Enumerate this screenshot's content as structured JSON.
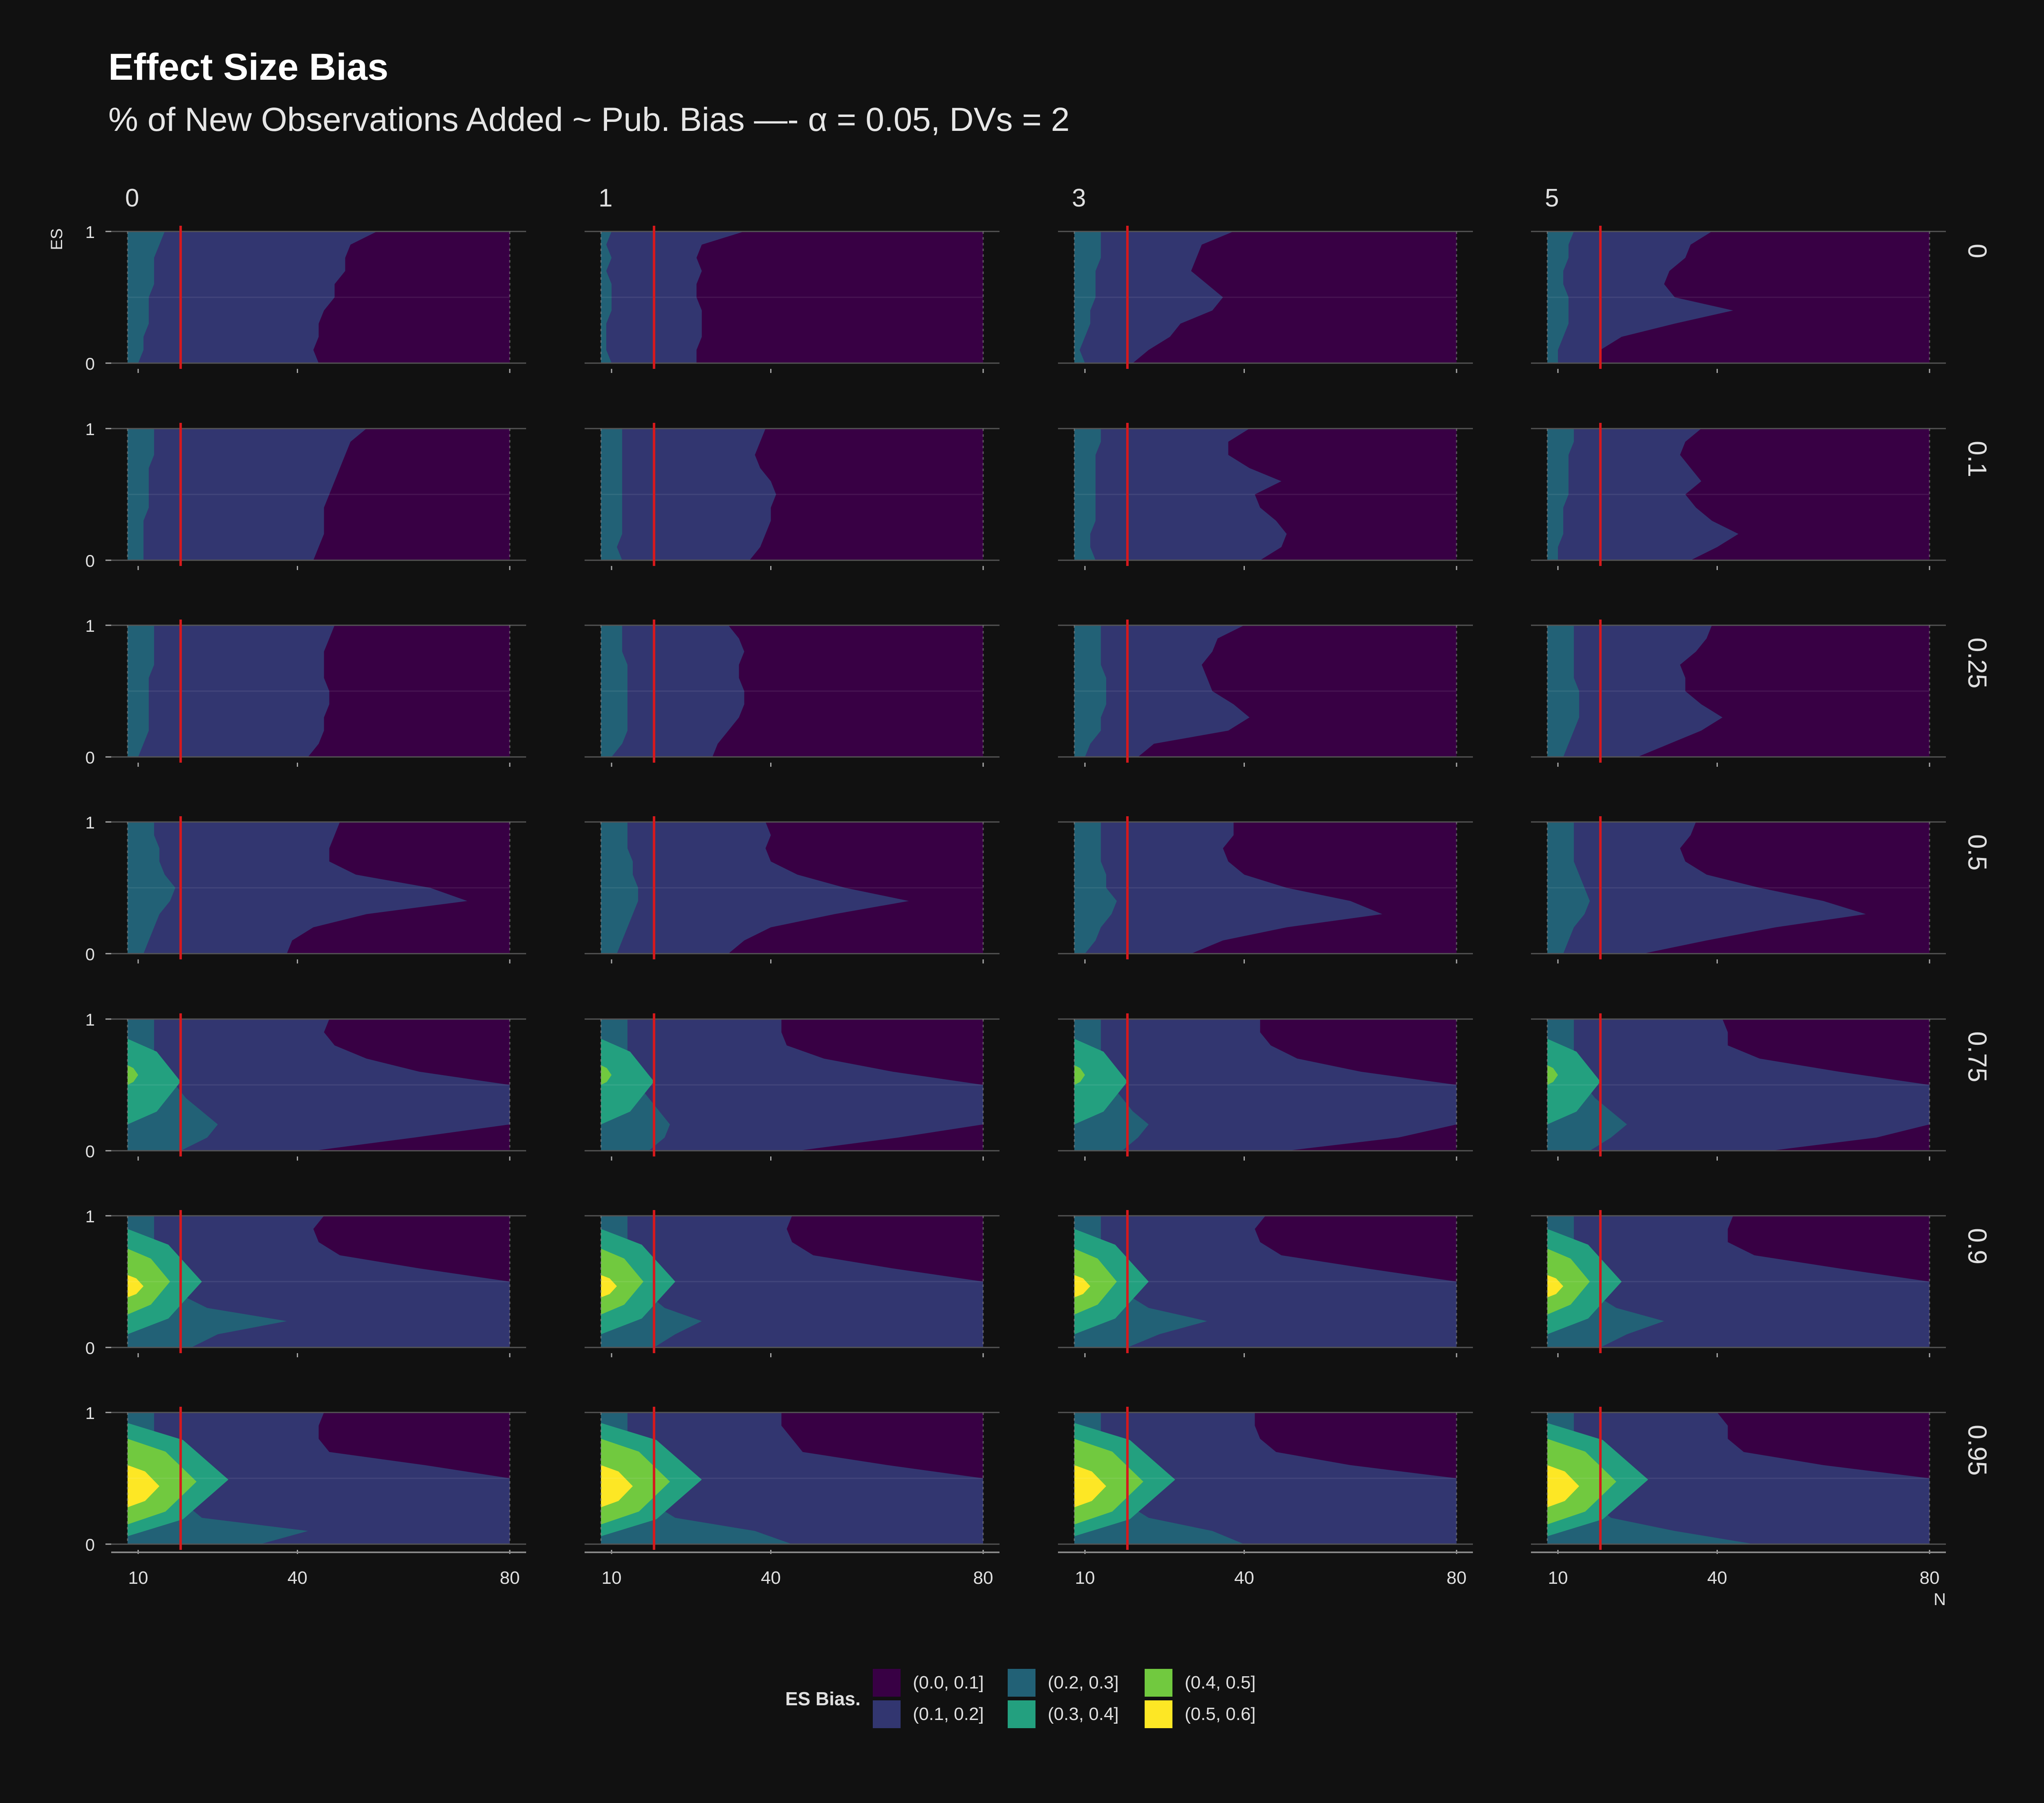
{
  "chart_data": {
    "type": "heatmap",
    "chart_kind": "faceted filled contour",
    "title": "Effect Size Bias",
    "subtitle": "% of New Observations Added ~ Pub. Bias —- α = 0.05, DVs = 2",
    "xlabel": "N",
    "ylabel": "ES",
    "x_ticks": [
      "10",
      "40",
      "80"
    ],
    "x_range": [
      8,
      80
    ],
    "y_ticks": [
      "0",
      "1"
    ],
    "y_range": [
      0,
      1
    ],
    "column_facets": [
      "0",
      "1",
      "3",
      "5"
    ],
    "row_facets": [
      "0",
      "0.1",
      "0.25",
      "0.5",
      "0.75",
      "0.9",
      "0.95"
    ],
    "reference_line": {
      "x": 18,
      "color": "#d7191c"
    },
    "legend": {
      "title": "ES Bias.",
      "position": "bottom",
      "bins": [
        "(0.0, 0.1]",
        "(0.1, 0.2]",
        "(0.2, 0.3]",
        "(0.3, 0.4]",
        "(0.4, 0.5]",
        "(0.5, 0.6]"
      ],
      "colors": [
        "#380044",
        "#323670",
        "#226176",
        "#23a07f",
        "#71c93f",
        "#fde725"
      ]
    },
    "boundary_es_levels": [
      0,
      0.1,
      0.2,
      0.3,
      0.4,
      0.5,
      0.6,
      0.7,
      0.8,
      0.9,
      1.0
    ],
    "panels": [
      [
        {
          "col": "0",
          "row": "0",
          "bounds_N": [
            [
              44,
              43,
              44,
              44,
              45,
              47,
              47,
              49,
              49,
              50,
              55
            ],
            [
              10,
              11,
              11,
              12,
              12,
              12,
              13,
              13,
              13,
              14,
              15
            ]
          ]
        },
        {
          "col": "1",
          "row": "0",
          "bounds_N": [
            [
              26,
              26,
              27,
              27,
              27,
              26,
              26,
              27,
              26,
              27,
              35
            ],
            [
              10,
              9,
              9,
              9,
              10,
              10,
              10,
              9,
              10,
              9,
              10
            ]
          ]
        },
        {
          "col": "3",
          "row": "0",
          "bounds_N": [
            [
              19,
              22,
              26,
              28,
              34,
              36,
              33,
              30,
              31,
              32,
              38
            ],
            [
              10,
              9,
              10,
              11,
              11,
              12,
              12,
              12,
              13,
              13,
              13
            ]
          ]
        },
        {
          "col": "5",
          "row": "0",
          "bounds_N": [
            [
              18,
              18,
              22,
              32,
              43,
              32,
              30,
              31,
              34,
              35,
              39
            ],
            [
              10,
              10,
              11,
              12,
              12,
              12,
              11,
              11,
              12,
              12,
              13
            ]
          ]
        }
      ],
      [
        {
          "col": "0",
          "row": "0.1",
          "bounds_N": [
            [
              43,
              44,
              45,
              45,
              45,
              46,
              47,
              48,
              49,
              50,
              53
            ],
            [
              11,
              11,
              11,
              11,
              12,
              12,
              12,
              12,
              13,
              13,
              13
            ]
          ]
        },
        {
          "col": "1",
          "row": "0.1",
          "bounds_N": [
            [
              36,
              38,
              39,
              40,
              40,
              41,
              40,
              38,
              37,
              38,
              39
            ],
            [
              12,
              11,
              12,
              12,
              12,
              12,
              12,
              12,
              12,
              12,
              12
            ]
          ]
        },
        {
          "col": "3",
          "row": "0.1",
          "bounds_N": [
            [
              43,
              47,
              48,
              46,
              43,
              42,
              47,
              41,
              37,
              37,
              41
            ],
            [
              12,
              11,
              11,
              12,
              12,
              12,
              12,
              12,
              12,
              13,
              13
            ]
          ]
        },
        {
          "col": "5",
          "row": "0.1",
          "bounds_N": [
            [
              35,
              40,
              44,
              39,
              36,
              34,
              37,
              35,
              33,
              34,
              37
            ],
            [
              10,
              10,
              11,
              11,
              11,
              12,
              12,
              12,
              12,
              13,
              13
            ]
          ]
        }
      ],
      [
        {
          "col": "0",
          "row": "0.25",
          "bounds_N": [
            [
              42,
              44,
              45,
              45,
              46,
              46,
              45,
              45,
              45,
              46,
              47
            ],
            [
              10,
              11,
              12,
              12,
              12,
              12,
              12,
              13,
              13,
              13,
              13
            ]
          ]
        },
        {
          "col": "1",
          "row": "0.25",
          "bounds_N": [
            [
              29,
              30,
              32,
              34,
              35,
              35,
              34,
              34,
              35,
              34,
              32
            ],
            [
              10,
              12,
              13,
              13,
              13,
              13,
              13,
              13,
              12,
              12,
              12
            ]
          ]
        },
        {
          "col": "3",
          "row": "0.25",
          "bounds_N": [
            [
              20,
              23,
              37,
              41,
              38,
              34,
              33,
              32,
              34,
              35,
              40
            ],
            [
              10,
              11,
              13,
              13,
              14,
              14,
              14,
              13,
              13,
              13,
              13
            ]
          ]
        },
        {
          "col": "5",
          "row": "0.25",
          "bounds_N": [
            [
              25,
              31,
              37,
              41,
              37,
              34,
              34,
              33,
              36,
              38,
              39
            ],
            [
              11,
              12,
              13,
              14,
              14,
              14,
              13,
              13,
              13,
              13,
              13
            ]
          ]
        }
      ],
      [
        {
          "col": "0",
          "row": "0.5",
          "bounds_N": [
            [
              38,
              39,
              43,
              53,
              72,
              65,
              51,
              46,
              46,
              47,
              48
            ],
            [
              11,
              12,
              13,
              14,
              16,
              17,
              15,
              14,
              14,
              13,
              13
            ]
          ]
        },
        {
          "col": "1",
          "row": "0.5",
          "bounds_N": [
            [
              32,
              35,
              40,
              52,
              66,
              54,
              45,
              40,
              39,
              40,
              39
            ],
            [
              11,
              12,
              13,
              14,
              15,
              15,
              14,
              14,
              13,
              13,
              13
            ]
          ]
        },
        {
          "col": "3",
          "row": "0.5",
          "bounds_N": [
            [
              30,
              36,
              48,
              66,
              60,
              48,
              40,
              37,
              36,
              38,
              38
            ],
            [
              10,
              12,
              13,
              15,
              16,
              14,
              14,
              13,
              13,
              13,
              13
            ]
          ]
        },
        {
          "col": "5",
          "row": "0.5",
          "bounds_N": [
            [
              26,
              38,
              51,
              68,
              60,
              48,
              38,
              34,
              33,
              35,
              36
            ],
            [
              11,
              12,
              13,
              15,
              16,
              15,
              14,
              13,
              13,
              13,
              13
            ]
          ]
        }
      ],
      [
        {
          "col": "0",
          "row": "0.75",
          "bounds_N": [
            [
              43,
              62,
              80,
              80,
              80,
              80,
              63,
              53,
              47,
              45,
              46
            ],
            [
              18,
              23,
              25,
              22,
              19,
              17,
              14,
              13,
              13,
              13,
              13
            ]
          ]
        },
        {
          "col": "1",
          "row": "0.75",
          "bounds_N": [
            [
              45,
              64,
              80,
              80,
              80,
              80,
              63,
              50,
              43,
              42,
              42
            ],
            [
              17,
              20,
              21,
              19,
              17,
              15,
              14,
              13,
              13,
              13,
              13
            ]
          ]
        },
        {
          "col": "3",
          "row": "0.75",
          "bounds_N": [
            [
              48,
              69,
              80,
              80,
              80,
              80,
              62,
              50,
              45,
              43,
              43
            ],
            [
              17,
              20,
              22,
              19,
              17,
              15,
              14,
              13,
              13,
              13,
              13
            ]
          ]
        },
        {
          "col": "5",
          "row": "0.75",
          "bounds_N": [
            [
              50,
              70,
              80,
              80,
              80,
              80,
              63,
              48,
              42,
              42,
              41
            ],
            [
              16,
              20,
              23,
              20,
              17,
              15,
              14,
              13,
              13,
              13,
              13
            ]
          ]
        }
      ],
      [
        {
          "col": "0",
          "row": "0.9",
          "bounds_N": [
            [
              80,
              80,
              80,
              80,
              80,
              80,
              63,
              48,
              44,
              43,
              45
            ],
            [
              20,
              25,
              38,
              23,
              18,
              16,
              15,
              14,
              13,
              13,
              13
            ]
          ]
        },
        {
          "col": "1",
          "row": "0.9",
          "bounds_N": [
            [
              80,
              80,
              80,
              80,
              80,
              80,
              63,
              48,
              44,
              43,
              44
            ],
            [
              18,
              22,
              27,
              20,
              17,
              15,
              14,
              13,
              13,
              13,
              13
            ]
          ]
        },
        {
          "col": "3",
          "row": "0.9",
          "bounds_N": [
            [
              80,
              80,
              80,
              80,
              80,
              80,
              63,
              47,
              43,
              42,
              44
            ],
            [
              18,
              24,
              33,
              22,
              18,
              16,
              14,
              13,
              13,
              13,
              13
            ]
          ]
        },
        {
          "col": "5",
          "row": "0.9",
          "bounds_N": [
            [
              80,
              80,
              80,
              80,
              80,
              80,
              63,
              47,
              42,
              42,
              43
            ],
            [
              18,
              23,
              30,
              21,
              17,
              16,
              14,
              13,
              13,
              13,
              13
            ]
          ]
        }
      ],
      [
        {
          "col": "0",
          "row": "0.95",
          "bounds_N": [
            [
              80,
              80,
              80,
              80,
              80,
              80,
              64,
              46,
              44,
              44,
              45
            ],
            [
              33,
              42,
              22,
              19,
              17,
              15,
              14,
              13,
              13,
              13,
              13
            ]
          ]
        },
        {
          "col": "1",
          "row": "0.95",
          "bounds_N": [
            [
              80,
              80,
              80,
              80,
              80,
              80,
              62,
              46,
              44,
              42,
              42
            ],
            [
              44,
              37,
              22,
              18,
              16,
              15,
              14,
              13,
              13,
              13,
              13
            ]
          ]
        },
        {
          "col": "3",
          "row": "0.95",
          "bounds_N": [
            [
              80,
              80,
              80,
              80,
              80,
              80,
              60,
              46,
              43,
              42,
              42
            ],
            [
              40,
              34,
              22,
              18,
              16,
              15,
              14,
              13,
              13,
              13,
              13
            ]
          ]
        },
        {
          "col": "5",
          "row": "0.95",
          "bounds_N": [
            [
              80,
              80,
              80,
              80,
              80,
              80,
              60,
              45,
              42,
              42,
              40
            ],
            [
              47,
              32,
              20,
              17,
              16,
              15,
              14,
              13,
              13,
              13,
              13
            ]
          ]
        }
      ]
    ]
  }
}
